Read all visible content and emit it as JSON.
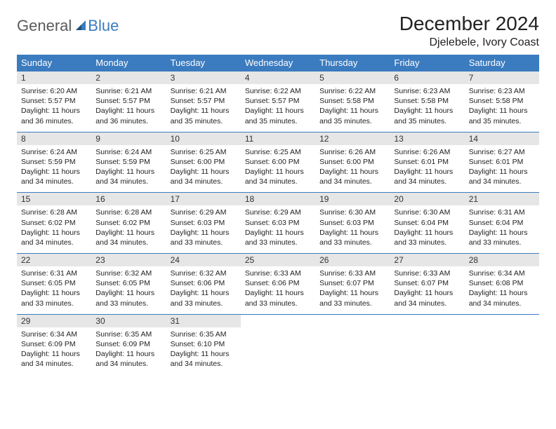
{
  "logo": {
    "general": "General",
    "blue": "Blue"
  },
  "header": {
    "month_title": "December 2024",
    "location": "Djelebele, Ivory Coast"
  },
  "colors": {
    "header_bg": "#3b7bbf",
    "header_text": "#ffffff",
    "daynum_bg": "#e6e6e6",
    "row_border": "#3b7bbf",
    "body_text": "#222222",
    "logo_gray": "#5a5a5a",
    "logo_blue": "#3b7bbf",
    "page_bg": "#ffffff"
  },
  "typography": {
    "month_title_fontsize": 28,
    "location_fontsize": 16,
    "weekday_fontsize": 13,
    "daynum_fontsize": 12,
    "body_fontsize": 10.5,
    "logo_fontsize": 22
  },
  "weekday_labels": [
    "Sunday",
    "Monday",
    "Tuesday",
    "Wednesday",
    "Thursday",
    "Friday",
    "Saturday"
  ],
  "weeks": [
    [
      {
        "day": "1",
        "sunrise": "Sunrise: 6:20 AM",
        "sunset": "Sunset: 5:57 PM",
        "daylight": "Daylight: 11 hours and 36 minutes."
      },
      {
        "day": "2",
        "sunrise": "Sunrise: 6:21 AM",
        "sunset": "Sunset: 5:57 PM",
        "daylight": "Daylight: 11 hours and 36 minutes."
      },
      {
        "day": "3",
        "sunrise": "Sunrise: 6:21 AM",
        "sunset": "Sunset: 5:57 PM",
        "daylight": "Daylight: 11 hours and 35 minutes."
      },
      {
        "day": "4",
        "sunrise": "Sunrise: 6:22 AM",
        "sunset": "Sunset: 5:57 PM",
        "daylight": "Daylight: 11 hours and 35 minutes."
      },
      {
        "day": "5",
        "sunrise": "Sunrise: 6:22 AM",
        "sunset": "Sunset: 5:58 PM",
        "daylight": "Daylight: 11 hours and 35 minutes."
      },
      {
        "day": "6",
        "sunrise": "Sunrise: 6:23 AM",
        "sunset": "Sunset: 5:58 PM",
        "daylight": "Daylight: 11 hours and 35 minutes."
      },
      {
        "day": "7",
        "sunrise": "Sunrise: 6:23 AM",
        "sunset": "Sunset: 5:58 PM",
        "daylight": "Daylight: 11 hours and 35 minutes."
      }
    ],
    [
      {
        "day": "8",
        "sunrise": "Sunrise: 6:24 AM",
        "sunset": "Sunset: 5:59 PM",
        "daylight": "Daylight: 11 hours and 34 minutes."
      },
      {
        "day": "9",
        "sunrise": "Sunrise: 6:24 AM",
        "sunset": "Sunset: 5:59 PM",
        "daylight": "Daylight: 11 hours and 34 minutes."
      },
      {
        "day": "10",
        "sunrise": "Sunrise: 6:25 AM",
        "sunset": "Sunset: 6:00 PM",
        "daylight": "Daylight: 11 hours and 34 minutes."
      },
      {
        "day": "11",
        "sunrise": "Sunrise: 6:25 AM",
        "sunset": "Sunset: 6:00 PM",
        "daylight": "Daylight: 11 hours and 34 minutes."
      },
      {
        "day": "12",
        "sunrise": "Sunrise: 6:26 AM",
        "sunset": "Sunset: 6:00 PM",
        "daylight": "Daylight: 11 hours and 34 minutes."
      },
      {
        "day": "13",
        "sunrise": "Sunrise: 6:26 AM",
        "sunset": "Sunset: 6:01 PM",
        "daylight": "Daylight: 11 hours and 34 minutes."
      },
      {
        "day": "14",
        "sunrise": "Sunrise: 6:27 AM",
        "sunset": "Sunset: 6:01 PM",
        "daylight": "Daylight: 11 hours and 34 minutes."
      }
    ],
    [
      {
        "day": "15",
        "sunrise": "Sunrise: 6:28 AM",
        "sunset": "Sunset: 6:02 PM",
        "daylight": "Daylight: 11 hours and 34 minutes."
      },
      {
        "day": "16",
        "sunrise": "Sunrise: 6:28 AM",
        "sunset": "Sunset: 6:02 PM",
        "daylight": "Daylight: 11 hours and 34 minutes."
      },
      {
        "day": "17",
        "sunrise": "Sunrise: 6:29 AM",
        "sunset": "Sunset: 6:03 PM",
        "daylight": "Daylight: 11 hours and 33 minutes."
      },
      {
        "day": "18",
        "sunrise": "Sunrise: 6:29 AM",
        "sunset": "Sunset: 6:03 PM",
        "daylight": "Daylight: 11 hours and 33 minutes."
      },
      {
        "day": "19",
        "sunrise": "Sunrise: 6:30 AM",
        "sunset": "Sunset: 6:03 PM",
        "daylight": "Daylight: 11 hours and 33 minutes."
      },
      {
        "day": "20",
        "sunrise": "Sunrise: 6:30 AM",
        "sunset": "Sunset: 6:04 PM",
        "daylight": "Daylight: 11 hours and 33 minutes."
      },
      {
        "day": "21",
        "sunrise": "Sunrise: 6:31 AM",
        "sunset": "Sunset: 6:04 PM",
        "daylight": "Daylight: 11 hours and 33 minutes."
      }
    ],
    [
      {
        "day": "22",
        "sunrise": "Sunrise: 6:31 AM",
        "sunset": "Sunset: 6:05 PM",
        "daylight": "Daylight: 11 hours and 33 minutes."
      },
      {
        "day": "23",
        "sunrise": "Sunrise: 6:32 AM",
        "sunset": "Sunset: 6:05 PM",
        "daylight": "Daylight: 11 hours and 33 minutes."
      },
      {
        "day": "24",
        "sunrise": "Sunrise: 6:32 AM",
        "sunset": "Sunset: 6:06 PM",
        "daylight": "Daylight: 11 hours and 33 minutes."
      },
      {
        "day": "25",
        "sunrise": "Sunrise: 6:33 AM",
        "sunset": "Sunset: 6:06 PM",
        "daylight": "Daylight: 11 hours and 33 minutes."
      },
      {
        "day": "26",
        "sunrise": "Sunrise: 6:33 AM",
        "sunset": "Sunset: 6:07 PM",
        "daylight": "Daylight: 11 hours and 33 minutes."
      },
      {
        "day": "27",
        "sunrise": "Sunrise: 6:33 AM",
        "sunset": "Sunset: 6:07 PM",
        "daylight": "Daylight: 11 hours and 34 minutes."
      },
      {
        "day": "28",
        "sunrise": "Sunrise: 6:34 AM",
        "sunset": "Sunset: 6:08 PM",
        "daylight": "Daylight: 11 hours and 34 minutes."
      }
    ],
    [
      {
        "day": "29",
        "sunrise": "Sunrise: 6:34 AM",
        "sunset": "Sunset: 6:09 PM",
        "daylight": "Daylight: 11 hours and 34 minutes."
      },
      {
        "day": "30",
        "sunrise": "Sunrise: 6:35 AM",
        "sunset": "Sunset: 6:09 PM",
        "daylight": "Daylight: 11 hours and 34 minutes."
      },
      {
        "day": "31",
        "sunrise": "Sunrise: 6:35 AM",
        "sunset": "Sunset: 6:10 PM",
        "daylight": "Daylight: 11 hours and 34 minutes."
      },
      null,
      null,
      null,
      null
    ]
  ]
}
